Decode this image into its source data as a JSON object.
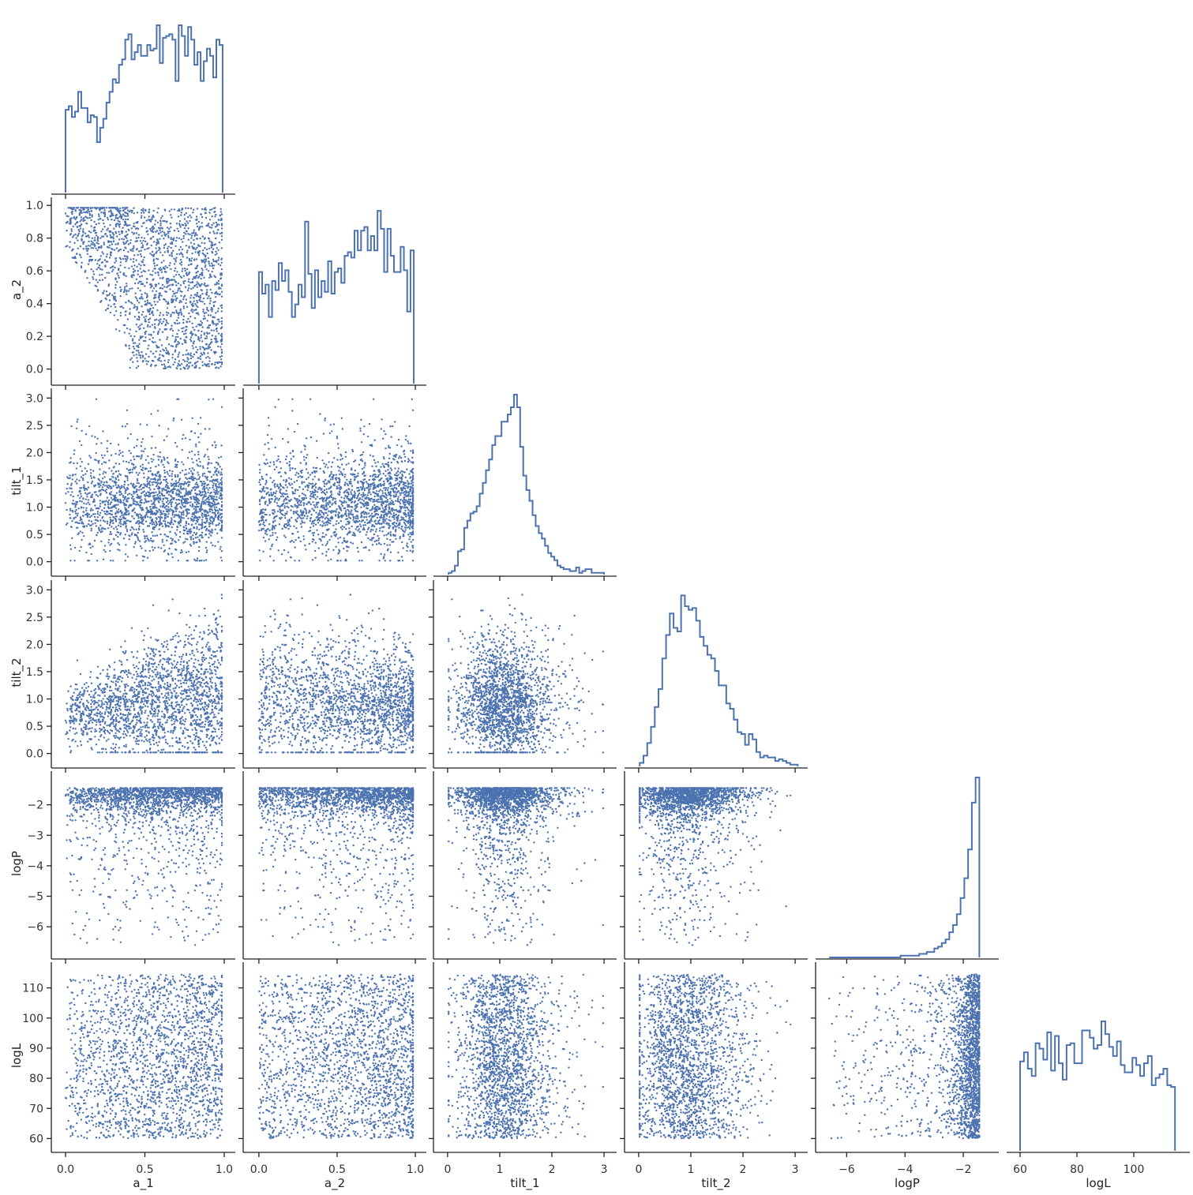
{
  "chart_data": {
    "type": "scatter",
    "layout": "corner-pairplot",
    "variables": [
      "a_1",
      "a_2",
      "tilt_1",
      "tilt_2",
      "logP",
      "logL"
    ],
    "axis_ranges": {
      "a_1": [
        -0.05,
        1.03
      ],
      "a_2": [
        -0.06,
        1.03
      ],
      "tilt_1": [
        -0.15,
        3.12
      ],
      "tilt_2": [
        -0.15,
        3.12
      ],
      "logP": [
        -6.85,
        -1.0
      ],
      "logL": [
        57.5,
        117.5
      ]
    },
    "ticks": {
      "a_1": [
        0.0,
        0.5,
        1.0
      ],
      "a_2": [
        0.0,
        0.2,
        0.4,
        0.6,
        0.8,
        1.0
      ],
      "tilt_1": [
        0.0,
        0.5,
        1.0,
        1.5,
        2.0,
        2.5,
        3.0
      ],
      "tilt_2": [
        0.0,
        0.5,
        1.0,
        1.5,
        2.0,
        2.5,
        3.0
      ],
      "logP": [
        -6,
        -5,
        -4,
        -3,
        -2
      ],
      "logL": [
        60,
        70,
        80,
        90,
        100,
        110
      ]
    },
    "x_tick_labels": {
      "a_1": [
        "0.0",
        "0.5",
        "1.0"
      ],
      "a_2": [
        "0.0",
        "0.5",
        "1.0"
      ],
      "tilt_1": [
        "0",
        "1",
        "2",
        "3"
      ],
      "tilt_2": [
        "0",
        "1",
        "2",
        "3"
      ],
      "logP": [
        "−6",
        "−4",
        "−2"
      ],
      "logL": [
        "60",
        "80",
        "100"
      ]
    },
    "x_tick_values": {
      "a_1": [
        0.0,
        0.5,
        1.0
      ],
      "a_2": [
        0.0,
        0.5,
        1.0
      ],
      "tilt_1": [
        0,
        1,
        2,
        3
      ],
      "tilt_2": [
        0,
        1,
        2,
        3
      ],
      "logP": [
        -6,
        -4,
        -2
      ],
      "logL": [
        60,
        80,
        100
      ]
    },
    "y_tick_labels": {
      "a_2": [
        "0.0",
        "0.2",
        "0.4",
        "0.6",
        "0.8",
        "1.0"
      ],
      "tilt_1": [
        "0.0",
        "0.5",
        "1.0",
        "1.5",
        "2.0",
        "2.5",
        "3.0"
      ],
      "tilt_2": [
        "0.0",
        "0.5",
        "1.0",
        "1.5",
        "2.0",
        "2.5",
        "3.0"
      ],
      "logP": [
        "−6",
        "−5",
        "−4",
        "−3",
        "−2"
      ],
      "logL": [
        "60",
        "70",
        "80",
        "90",
        "100",
        "110"
      ]
    },
    "histograms": {
      "a_1": [
        0.46,
        0.48,
        0.42,
        0.45,
        0.56,
        0.47,
        0.47,
        0.39,
        0.43,
        0.42,
        0.28,
        0.36,
        0.41,
        0.5,
        0.56,
        0.63,
        0.61,
        0.71,
        0.74,
        0.85,
        0.88,
        0.74,
        0.78,
        0.82,
        0.76,
        0.76,
        0.82,
        0.79,
        0.8,
        0.93,
        0.72,
        0.86,
        0.87,
        0.88,
        0.85,
        0.62,
        0.93,
        0.87,
        0.76,
        0.92,
        0.85,
        0.71,
        0.78,
        0.62,
        0.73,
        0.8,
        0.76,
        0.64,
        0.85,
        0.82
      ],
      "a_2": [
        0.62,
        0.5,
        0.55,
        0.37,
        0.57,
        0.52,
        0.67,
        0.57,
        0.63,
        0.51,
        0.37,
        0.44,
        0.55,
        0.48,
        0.9,
        0.61,
        0.42,
        0.63,
        0.48,
        0.57,
        0.51,
        0.68,
        0.5,
        0.62,
        0.64,
        0.56,
        0.71,
        0.73,
        0.7,
        0.85,
        0.74,
        0.85,
        0.87,
        0.74,
        0.82,
        0.74,
        0.96,
        0.86,
        0.62,
        0.86,
        0.71,
        0.62,
        0.62,
        0.76,
        0.63,
        0.4,
        0.74
      ],
      "tilt_1": [
        0.01,
        0.02,
        0.05,
        0.13,
        0.14,
        0.26,
        0.3,
        0.34,
        0.35,
        0.38,
        0.45,
        0.51,
        0.58,
        0.64,
        0.72,
        0.77,
        0.77,
        0.85,
        0.85,
        0.89,
        0.93,
        1.0,
        0.93,
        0.71,
        0.55,
        0.47,
        0.41,
        0.33,
        0.27,
        0.23,
        0.2,
        0.16,
        0.12,
        0.1,
        0.08,
        0.05,
        0.04,
        0.03,
        0.03,
        0.02,
        0.02,
        0.04,
        0.01,
        0.02,
        0.03,
        0.03,
        0.01,
        0.01,
        0.01,
        0.01
      ],
      "tilt_2": [
        0.02,
        0.06,
        0.13,
        0.22,
        0.33,
        0.43,
        0.6,
        0.73,
        0.85,
        0.77,
        0.75,
        0.95,
        0.89,
        0.87,
        0.88,
        0.81,
        0.72,
        0.67,
        0.62,
        0.6,
        0.53,
        0.45,
        0.45,
        0.35,
        0.32,
        0.26,
        0.19,
        0.18,
        0.12,
        0.18,
        0.15,
        0.08,
        0.05,
        0.06,
        0.05,
        0.05,
        0.03,
        0.04,
        0.03,
        0.02,
        0.01,
        0.01
      ],
      "logP": [
        0.0,
        0.0,
        0.0,
        0.0,
        0.0,
        0.0,
        0.0,
        0.0,
        0.0,
        0.0,
        0.0,
        0.0,
        0.0,
        0.0,
        0.0,
        0.0,
        0.0,
        0.0,
        0.0,
        0.01,
        0.01,
        0.01,
        0.01,
        0.01,
        0.02,
        0.02,
        0.03,
        0.03,
        0.05,
        0.06,
        0.08,
        0.1,
        0.14,
        0.18,
        0.24,
        0.33,
        0.44,
        0.6,
        0.86,
        1.0
      ],
      "logL": [
        0.49,
        0.54,
        0.45,
        0.41,
        0.59,
        0.56,
        0.5,
        0.65,
        0.44,
        0.63,
        0.48,
        0.39,
        0.58,
        0.59,
        0.48,
        0.48,
        0.66,
        0.66,
        0.62,
        0.56,
        0.58,
        0.71,
        0.64,
        0.57,
        0.52,
        0.6,
        0.47,
        0.43,
        0.43,
        0.51,
        0.47,
        0.41,
        0.48,
        0.52,
        0.36,
        0.4,
        0.42,
        0.45,
        0.36,
        0.35
      ]
    },
    "n_points": 2000,
    "series_color": "#4c72b0",
    "grid": false,
    "legend": "none"
  }
}
